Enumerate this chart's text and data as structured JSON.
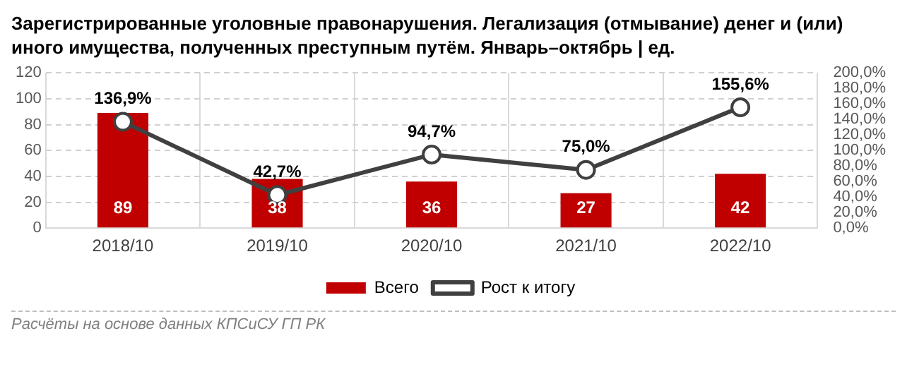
{
  "chart_data": {
    "type": "bar",
    "title": "Зарегистрированные уголовные правонарушения. Легализация (отмывание) денег и (или) иного имущества, полученных преступным путём. Январь–октябрь | ед.",
    "categories": [
      "2018/10",
      "2019/10",
      "2020/10",
      "2021/10",
      "2022/10"
    ],
    "series": [
      {
        "name": "Всего",
        "color": "#c00000",
        "values": [
          89,
          38,
          36,
          27,
          42
        ],
        "value_labels": [
          "89",
          "38",
          "36",
          "27",
          "42"
        ]
      },
      {
        "name": "Рост к итогу",
        "type": "line",
        "axis": "y2",
        "color": "#404040",
        "marker": "circle",
        "values": [
          136.9,
          42.7,
          94.7,
          75.0,
          155.6
        ],
        "value_labels": [
          "136,9%",
          "42,7%",
          "94,7%",
          "75,0%",
          "155,6%"
        ]
      }
    ],
    "ylim": [
      0,
      120
    ],
    "yticks": [
      0,
      20,
      40,
      60,
      80,
      100,
      120
    ],
    "y2lim": [
      0,
      200
    ],
    "y2ticks": [
      {
        "value": 0,
        "label": "0,0%"
      },
      {
        "value": 20,
        "label": "20,0%"
      },
      {
        "value": 40,
        "label": "40,0%"
      },
      {
        "value": 60,
        "label": "60,0%"
      },
      {
        "value": 80,
        "label": "80,0%"
      },
      {
        "value": 100,
        "label": "100,0%"
      },
      {
        "value": 120,
        "label": "120,0%"
      },
      {
        "value": 140,
        "label": "140,0%"
      },
      {
        "value": 160,
        "label": "160,0%"
      },
      {
        "value": 180,
        "label": "180,0%"
      },
      {
        "value": 200,
        "label": "200,0%"
      }
    ],
    "grid": true,
    "legend": "bottom",
    "annotations": [
      "Расчёты на основе данных КПСиСУ ГП РК"
    ]
  }
}
